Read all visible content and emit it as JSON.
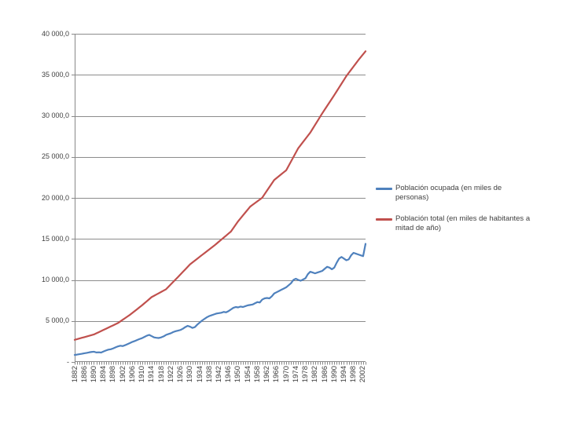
{
  "chart_data": {
    "type": "line",
    "title": "",
    "grid": true,
    "legend_position": "right",
    "ylim": [
      0,
      40000
    ],
    "ytick_step": 5000,
    "ytick_labels": [
      "-",
      "5 000,0",
      "10 000,0",
      "15 000,0",
      "20 000,0",
      "25 000,0",
      "30 000,0",
      "35 000,0",
      "40 000,0"
    ],
    "x_range": {
      "start": 1882,
      "end": 2003,
      "step": 1
    },
    "x_tick_labels": [
      "1882",
      "1886",
      "1890",
      "1894",
      "1898",
      "1902",
      "1906",
      "1910",
      "1914",
      "1918",
      "1922",
      "1926",
      "1930",
      "1934",
      "1938",
      "1942",
      "1946",
      "1950",
      "1954",
      "1958",
      "1962",
      "1966",
      "1970",
      "1974",
      "1978",
      "1982",
      "1986",
      "1990",
      "1994",
      "1998",
      "2002"
    ],
    "x_label_every": 4,
    "colors": {
      "gridline": "#8C8C8C",
      "axis": "#898989",
      "text": "#404040"
    },
    "series": [
      {
        "name": "Población ocupada (en miles de personas)",
        "color": "#4F81BD",
        "values": [
          860,
          900,
          950,
          1000,
          1060,
          1110,
          1170,
          1220,
          1250,
          1160,
          1180,
          1150,
          1280,
          1400,
          1500,
          1550,
          1650,
          1780,
          1900,
          1980,
          1940,
          2050,
          2180,
          2310,
          2450,
          2550,
          2680,
          2800,
          2900,
          3050,
          3200,
          3300,
          3150,
          3000,
          2950,
          2920,
          3000,
          3120,
          3300,
          3400,
          3500,
          3650,
          3750,
          3820,
          3900,
          4050,
          4250,
          4400,
          4300,
          4150,
          4250,
          4550,
          4800,
          5050,
          5250,
          5450,
          5600,
          5700,
          5800,
          5900,
          5950,
          6000,
          6100,
          6050,
          6200,
          6400,
          6600,
          6700,
          6650,
          6750,
          6700,
          6800,
          6900,
          6950,
          7000,
          7150,
          7300,
          7250,
          7600,
          7750,
          7800,
          7750,
          8000,
          8350,
          8500,
          8650,
          8800,
          8950,
          9100,
          9350,
          9600,
          10000,
          10150,
          10000,
          9900,
          10050,
          10200,
          10700,
          11000,
          10900,
          10800,
          10900,
          11000,
          11100,
          11350,
          11600,
          11500,
          11300,
          11500,
          12100,
          12600,
          12800,
          12600,
          12400,
          12500,
          13000,
          13300,
          13200,
          13100,
          13000,
          12900,
          14400
        ]
      },
      {
        "name": "Población total (en miles de habitantes a mitad de año)",
        "color": "#C0504D",
        "values": [
          2700,
          2781,
          2863,
          2944,
          3025,
          3106,
          3188,
          3269,
          3350,
          3489,
          3628,
          3767,
          3906,
          4045,
          4185,
          4325,
          4465,
          4605,
          4745,
          4946,
          5147,
          5348,
          5549,
          5750,
          5980,
          6210,
          6440,
          6670,
          6900,
          7151,
          7402,
          7654,
          7905,
          8064,
          8223,
          8382,
          8542,
          8701,
          8860,
          9160,
          9460,
          9760,
          10060,
          10360,
          10668,
          10976,
          11284,
          11592,
          11900,
          12129,
          12358,
          12587,
          12816,
          13045,
          13270,
          13495,
          13720,
          13945,
          14170,
          14416,
          14663,
          14909,
          15156,
          15402,
          15649,
          15895,
          16313,
          16732,
          17150,
          17506,
          17862,
          18218,
          18574,
          18930,
          19147,
          19364,
          19581,
          19798,
          20015,
          20448,
          20881,
          21314,
          21747,
          22180,
          22417,
          22654,
          22891,
          23128,
          23365,
          23902,
          24439,
          24976,
          25513,
          26050,
          26430,
          26810,
          27190,
          27570,
          27950,
          28421,
          28892,
          29363,
          29834,
          30305,
          30750,
          31195,
          31640,
          32085,
          32530,
          32991,
          33452,
          33913,
          34374,
          34835,
          35225,
          35615,
          36005,
          36395,
          36785,
          37147,
          37509,
          37870
        ]
      }
    ]
  },
  "legend": {
    "items": [
      {
        "label": "Población ocupada (en miles de personas)"
      },
      {
        "label": "Población total (en miles de habitantes a mitad de año)"
      }
    ]
  }
}
